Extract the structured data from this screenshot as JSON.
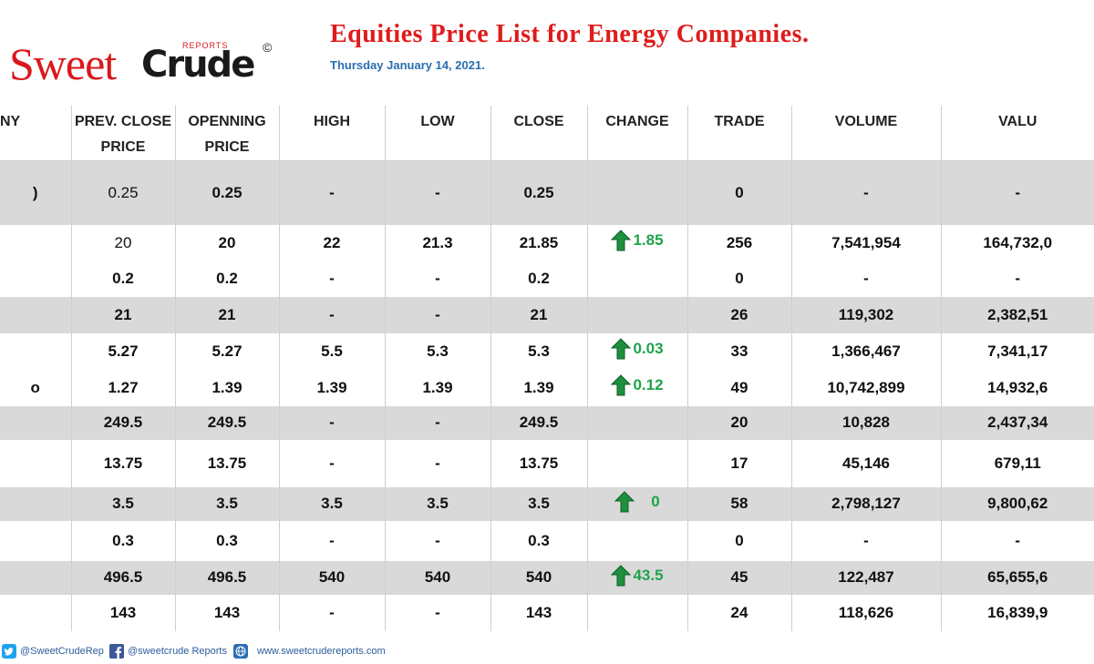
{
  "logo": {
    "sweet": "Sweet",
    "crude": "Crude",
    "reports": "REPORTS",
    "copyright": "©"
  },
  "title": "Equities Price List for Energy Companies.",
  "date": "Thursday January 14, 2021.",
  "columns": {
    "company": "NY",
    "prev_close": [
      "PREV. CLOSE",
      "PRICE"
    ],
    "opening": [
      "OPENNING",
      "PRICE"
    ],
    "high": "HIGH",
    "low": "LOW",
    "close": "CLOSE",
    "change": "CHANGE",
    "trade": "TRADE",
    "volume": "VOLUME",
    "value": "VALU"
  },
  "rows": [
    {
      "company": ")",
      "prev": "0.25",
      "open": "0.25",
      "high": "-",
      "low": "-",
      "close": "0.25",
      "change": "",
      "trade": "0",
      "volume": "-",
      "value": "-"
    },
    {
      "company": "",
      "prev": "20",
      "open": "20",
      "high": "22",
      "low": "21.3",
      "close": "21.85",
      "change": "1.85",
      "trade": "256",
      "volume": "7,541,954",
      "value": "164,732,0"
    },
    {
      "company": "",
      "prev": "0.2",
      "open": "0.2",
      "high": "-",
      "low": "-",
      "close": "0.2",
      "change": "",
      "trade": "0",
      "volume": "-",
      "value": "-"
    },
    {
      "company": "",
      "prev": "21",
      "open": "21",
      "high": "-",
      "low": "-",
      "close": "21",
      "change": "",
      "trade": "26",
      "volume": "119,302",
      "value": "2,382,51"
    },
    {
      "company": "",
      "prev": "5.27",
      "open": "5.27",
      "high": "5.5",
      "low": "5.3",
      "close": "5.3",
      "change": "0.03",
      "trade": "33",
      "volume": "1,366,467",
      "value": "7,341,17"
    },
    {
      "company": "o",
      "prev": "1.27",
      "open": "1.39",
      "high": "1.39",
      "low": "1.39",
      "close": "1.39",
      "change": "0.12",
      "trade": "49",
      "volume": "10,742,899",
      "value": "14,932,6"
    },
    {
      "company": "",
      "prev": "249.5",
      "open": "249.5",
      "high": "-",
      "low": "-",
      "close": "249.5",
      "change": "",
      "trade": "20",
      "volume": "10,828",
      "value": "2,437,34"
    },
    {
      "company": "",
      "prev": "13.75",
      "open": "13.75",
      "high": "-",
      "low": "-",
      "close": "13.75",
      "change": "",
      "trade": "17",
      "volume": "45,146",
      "value": "679,11"
    },
    {
      "company": "",
      "prev": "3.5",
      "open": "3.5",
      "high": "3.5",
      "low": "3.5",
      "close": "3.5",
      "change": "0",
      "trade": "58",
      "volume": "2,798,127",
      "value": "9,800,62"
    },
    {
      "company": "",
      "prev": "0.3",
      "open": "0.3",
      "high": "-",
      "low": "-",
      "close": "0.3",
      "change": "",
      "trade": "0",
      "volume": "-",
      "value": "-"
    },
    {
      "company": "",
      "prev": "496.5",
      "open": "496.5",
      "high": "540",
      "low": "540",
      "close": "540",
      "change": "43.5",
      "trade": "45",
      "volume": "122,487",
      "value": "65,655,6"
    },
    {
      "company": "",
      "prev": "143",
      "open": "143",
      "high": "-",
      "low": "-",
      "close": "143",
      "change": "",
      "trade": "24",
      "volume": "118,626",
      "value": "16,839,9"
    }
  ],
  "colors": {
    "shade": "#d9d9d9",
    "up": "#1fa34a",
    "title": "#e01b1b",
    "date": "#2a6fb0"
  },
  "footer": {
    "twitter": "@SweetCrudeRep",
    "facebook": "@sweetcrude Reports",
    "website": "www.sweetcrudereports.com"
  }
}
